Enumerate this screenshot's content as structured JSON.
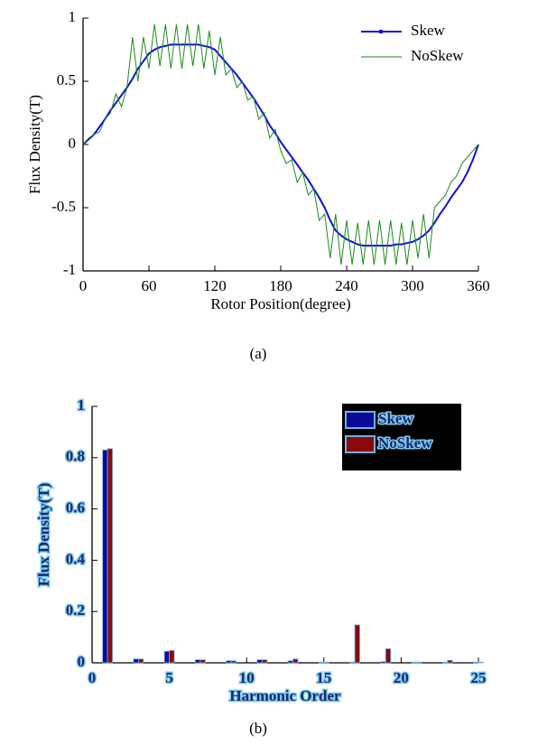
{
  "chart_data": [
    {
      "type": "line",
      "caption": "(a)",
      "xlabel": "Rotor Position(degree)",
      "ylabel": "Flux Density(T)",
      "x": [
        0,
        5,
        10,
        15,
        20,
        25,
        30,
        35,
        40,
        45,
        50,
        55,
        60,
        65,
        70,
        75,
        80,
        85,
        90,
        95,
        100,
        105,
        110,
        115,
        120,
        125,
        130,
        135,
        140,
        145,
        150,
        155,
        160,
        165,
        170,
        175,
        180,
        185,
        190,
        195,
        200,
        205,
        210,
        215,
        220,
        225,
        230,
        235,
        240,
        245,
        250,
        255,
        260,
        265,
        270,
        275,
        280,
        285,
        290,
        295,
        300,
        305,
        310,
        315,
        320,
        325,
        330,
        335,
        340,
        345,
        350,
        355,
        360
      ],
      "series": [
        {
          "name": "Skew",
          "color": "#1010e0",
          "values": [
            0,
            0.04,
            0.08,
            0.14,
            0.2,
            0.27,
            0.33,
            0.39,
            0.45,
            0.52,
            0.6,
            0.66,
            0.72,
            0.75,
            0.77,
            0.78,
            0.79,
            0.79,
            0.79,
            0.79,
            0.79,
            0.79,
            0.78,
            0.77,
            0.75,
            0.7,
            0.65,
            0.6,
            0.55,
            0.49,
            0.43,
            0.37,
            0.3,
            0.23,
            0.15,
            0.09,
            0.02,
            -0.04,
            -0.1,
            -0.16,
            -0.22,
            -0.28,
            -0.35,
            -0.42,
            -0.5,
            -0.6,
            -0.68,
            -0.72,
            -0.75,
            -0.77,
            -0.79,
            -0.8,
            -0.8,
            -0.8,
            -0.8,
            -0.8,
            -0.8,
            -0.79,
            -0.79,
            -0.78,
            -0.77,
            -0.75,
            -0.72,
            -0.68,
            -0.62,
            -0.55,
            -0.49,
            -0.42,
            -0.36,
            -0.3,
            -0.22,
            -0.12,
            0
          ]
        },
        {
          "name": "NoSkew",
          "color": "#1a8a1a",
          "values": [
            0,
            0.05,
            0.08,
            0.1,
            0.2,
            0.25,
            0.4,
            0.3,
            0.45,
            0.85,
            0.5,
            0.85,
            0.6,
            0.95,
            0.62,
            0.95,
            0.6,
            0.95,
            0.6,
            0.95,
            0.62,
            0.95,
            0.6,
            0.9,
            0.55,
            0.85,
            0.55,
            0.6,
            0.45,
            0.5,
            0.35,
            0.38,
            0.2,
            0.25,
            0.05,
            0.12,
            -0.05,
            -0.15,
            -0.12,
            -0.3,
            -0.22,
            -0.4,
            -0.35,
            -0.6,
            -0.55,
            -0.9,
            -0.55,
            -0.95,
            -0.6,
            -0.95,
            -0.62,
            -0.95,
            -0.6,
            -0.95,
            -0.6,
            -0.95,
            -0.6,
            -0.95,
            -0.62,
            -0.95,
            -0.6,
            -0.9,
            -0.55,
            -0.9,
            -0.5,
            -0.45,
            -0.4,
            -0.3,
            -0.25,
            -0.15,
            -0.1,
            -0.05,
            0
          ]
        }
      ],
      "xlim": [
        0,
        360
      ],
      "xticks": [
        0,
        60,
        120,
        180,
        240,
        300,
        360
      ],
      "ylim": [
        -1,
        1
      ],
      "yticks": [
        -1,
        -0.5,
        0,
        0.5,
        1
      ],
      "legend": "upper right"
    },
    {
      "type": "bar",
      "caption": "(b)",
      "xlabel": "Harmonic Order",
      "ylabel": "Flux Density(T)",
      "x": [
        1,
        3,
        5,
        7,
        9,
        11,
        13,
        15,
        17,
        19,
        21,
        23,
        25
      ],
      "series": [
        {
          "name": "Skew",
          "color": "#0a0a9a",
          "values": [
            0.83,
            0.015,
            0.045,
            0.012,
            0.008,
            0.012,
            0.008,
            0.003,
            0.003,
            0.005,
            0.003,
            0.003,
            0.003
          ]
        },
        {
          "name": "NoSkew",
          "color": "#8a0a0a",
          "values": [
            0.835,
            0.015,
            0.048,
            0.012,
            0.008,
            0.012,
            0.015,
            0.003,
            0.148,
            0.055,
            0.003,
            0.01,
            0.003
          ]
        }
      ],
      "xlim": [
        0,
        25
      ],
      "xticks": [
        0,
        5,
        10,
        15,
        20,
        25
      ],
      "ylim": [
        0,
        1
      ],
      "yticks": [
        0,
        0.2,
        0.4,
        0.6,
        0.8,
        1
      ],
      "legend": "upper right"
    }
  ]
}
